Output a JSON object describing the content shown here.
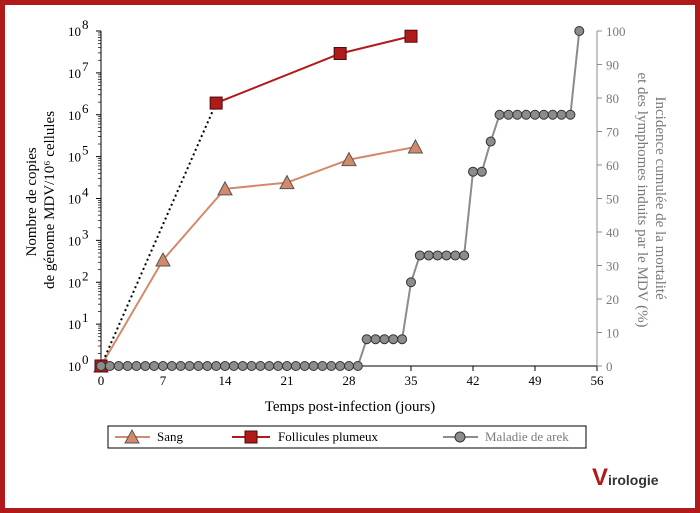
{
  "chart_data": {
    "type": "line",
    "xlabel": "Temps post-infection (jours)",
    "x_ticks": [
      0,
      7,
      14,
      21,
      28,
      35,
      42,
      49,
      56
    ],
    "xlim": [
      0,
      56
    ],
    "ylabel_left_lines": [
      "Nombre de copies",
      "de génome MDV/10⁶ cellules"
    ],
    "y_left_scale": "log",
    "y_left_ticks": [
      {
        "base": "10",
        "exp": "0",
        "value": 1
      },
      {
        "base": "10",
        "exp": "1",
        "value": 10
      },
      {
        "base": "10",
        "exp": "2",
        "value": 100
      },
      {
        "base": "10",
        "exp": "3",
        "value": 1000
      },
      {
        "base": "10",
        "exp": "4",
        "value": 10000
      },
      {
        "base": "10",
        "exp": "5",
        "value": 100000
      },
      {
        "base": "10",
        "exp": "6",
        "value": 1000000
      },
      {
        "base": "10",
        "exp": "7",
        "value": 10000000
      },
      {
        "base": "10",
        "exp": "8",
        "value": 100000000
      }
    ],
    "ylabel_right_lines": [
      "Incidence cumulée de la mortalité",
      "et des lymphomes induits par le MDV (%)"
    ],
    "y_right_ticks": [
      0,
      10,
      20,
      30,
      40,
      50,
      60,
      70,
      80,
      90,
      100
    ],
    "y_right_lim": [
      0,
      100
    ],
    "series": [
      {
        "name": "Sang",
        "axis": "left",
        "marker": "triangle",
        "color": "#d4896a",
        "points": [
          [
            0,
            1
          ],
          [
            7,
            340
          ],
          [
            14,
            17000
          ],
          [
            21,
            24000
          ],
          [
            28,
            85000
          ],
          [
            35.5,
            170000
          ]
        ]
      },
      {
        "name": "Follicules plumeux",
        "axis": "left",
        "marker": "square",
        "color": "#b11a1a",
        "points": [
          [
            0,
            1
          ],
          [
            13,
            1900000
          ],
          [
            27,
            29000000
          ],
          [
            35,
            75000000
          ]
        ],
        "dotted_segment": [
          0,
          1
        ]
      },
      {
        "name": "Maladie de arek",
        "axis": "right",
        "marker": "circle",
        "color": "#8c8c8c",
        "points": [
          [
            0,
            0
          ],
          [
            1,
            0
          ],
          [
            2,
            0
          ],
          [
            3,
            0
          ],
          [
            4,
            0
          ],
          [
            5,
            0
          ],
          [
            6,
            0
          ],
          [
            7,
            0
          ],
          [
            8,
            0
          ],
          [
            9,
            0
          ],
          [
            10,
            0
          ],
          [
            11,
            0
          ],
          [
            12,
            0
          ],
          [
            13,
            0
          ],
          [
            14,
            0
          ],
          [
            15,
            0
          ],
          [
            16,
            0
          ],
          [
            17,
            0
          ],
          [
            18,
            0
          ],
          [
            19,
            0
          ],
          [
            20,
            0
          ],
          [
            21,
            0
          ],
          [
            22,
            0
          ],
          [
            23,
            0
          ],
          [
            24,
            0
          ],
          [
            25,
            0
          ],
          [
            26,
            0
          ],
          [
            27,
            0
          ],
          [
            28,
            0
          ],
          [
            29,
            0
          ],
          [
            30,
            8
          ],
          [
            31,
            8
          ],
          [
            32,
            8
          ],
          [
            33,
            8
          ],
          [
            34,
            8
          ],
          [
            35,
            25
          ],
          [
            36,
            33
          ],
          [
            37,
            33
          ],
          [
            38,
            33
          ],
          [
            39,
            33
          ],
          [
            40,
            33
          ],
          [
            41,
            33
          ],
          [
            42,
            58
          ],
          [
            43,
            58
          ],
          [
            44,
            67
          ],
          [
            45,
            75
          ],
          [
            46,
            75
          ],
          [
            47,
            75
          ],
          [
            48,
            75
          ],
          [
            49,
            75
          ],
          [
            50,
            75
          ],
          [
            51,
            75
          ],
          [
            52,
            75
          ],
          [
            53,
            75
          ],
          [
            54,
            100
          ]
        ]
      }
    ]
  },
  "logo": {
    "initial": "V",
    "rest": "irologie"
  },
  "colors": {
    "frame": "#b11a1a",
    "right_axis": "#8c8c8c"
  }
}
